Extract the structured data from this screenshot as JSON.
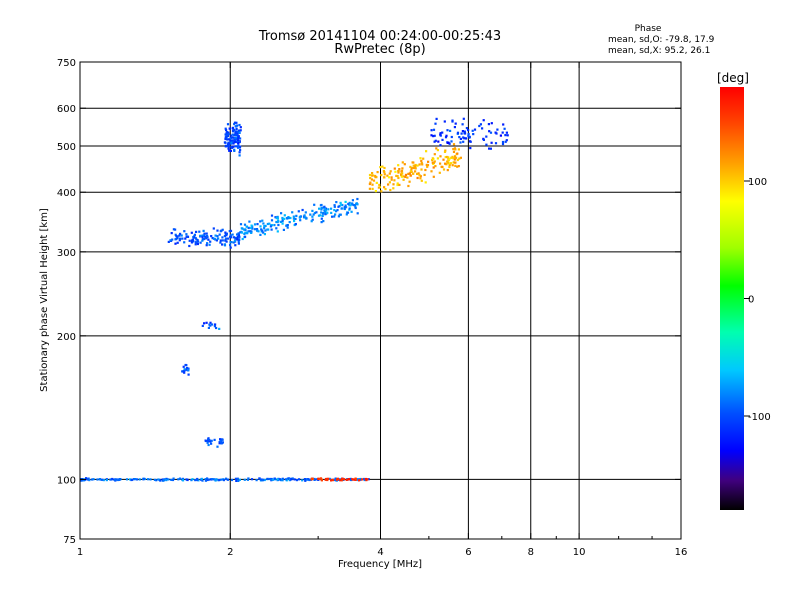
{
  "chart_data": {
    "type": "scatter",
    "title": "Tromsø 20141104 00:24:00-00:25:43",
    "subtitle": "RwPretec (8p)",
    "xlabel": "Frequency [MHz]",
    "ylabel": "Stationary phase Virtual Height [km]",
    "x_scale": "log",
    "y_scale": "log",
    "xlim": [
      1,
      16
    ],
    "ylim": [
      75,
      750
    ],
    "x_ticks": [
      1,
      2,
      4,
      6,
      8,
      10,
      16
    ],
    "x_tick_labels": [
      "1",
      "2",
      "4",
      "6",
      "8",
      "10",
      "16"
    ],
    "y_ticks": [
      75,
      100,
      200,
      300,
      400,
      500,
      600,
      750
    ],
    "y_tick_labels": [
      "75",
      "100",
      "200",
      "300",
      "400",
      "500",
      "600",
      "750"
    ],
    "grid_x": [
      2,
      4,
      6,
      8,
      10
    ],
    "grid_y": [
      100,
      200,
      300,
      400,
      500,
      600
    ],
    "stats": {
      "title": "Phase",
      "line_o": "mean, sd,O: -79.8, 17.9",
      "line_x": "mean, sd,X:  95.2, 26.1"
    },
    "colorbar": {
      "label": "[deg]",
      "range": [
        -180,
        180
      ],
      "tick_values": [
        100,
        0,
        -100
      ],
      "tick_labels": [
        "100",
        "0",
        "-100"
      ]
    },
    "clusters": [
      {
        "name": "E-layer trace",
        "x_range": [
          1.0,
          3.8
        ],
        "y": 100,
        "y_spread": 0.008,
        "n": 220,
        "phase": -95
      },
      {
        "name": "E-layer X trace",
        "x_range": [
          2.9,
          3.8
        ],
        "y": 100,
        "y_spread": 0.008,
        "n": 40,
        "phase": 160
      },
      {
        "name": "Es ladder 120 km",
        "x_range": [
          1.78,
          1.95
        ],
        "y": 120,
        "y_spread": 0.03,
        "n": 25,
        "phase": -100
      },
      {
        "name": "Es ladder 170 km",
        "x_range": [
          1.6,
          1.65
        ],
        "y": 170,
        "y_spread": 0.04,
        "n": 18,
        "phase": -100
      },
      {
        "name": "Es ladder 210 km",
        "x_range": [
          1.75,
          1.9
        ],
        "y": 210,
        "y_spread": 0.03,
        "n": 12,
        "phase": -100
      },
      {
        "name": "F-layer O-mode cusp",
        "x_range": [
          1.5,
          2.1
        ],
        "y": 320,
        "y_spread": 0.06,
        "n": 140,
        "phase": -100
      },
      {
        "name": "F-layer O-mode steep rise",
        "x_range": [
          1.95,
          2.1
        ],
        "y": 520,
        "y_spread": 0.1,
        "n": 120,
        "phase": -105
      },
      {
        "name": "F-layer O-mode trace",
        "x_range": [
          2.1,
          3.6
        ],
        "y": 330,
        "y_spread": 0.06,
        "n": 200,
        "phase": -85
      },
      {
        "name": "F-layer X-mode trace",
        "x_range": [
          3.8,
          5.8
        ],
        "y": 420,
        "y_spread": 0.09,
        "n": 180,
        "phase": 110
      },
      {
        "name": "F-layer high trace",
        "x_range": [
          5.0,
          7.2
        ],
        "y": 530,
        "y_spread": 0.1,
        "n": 90,
        "phase": -110
      }
    ]
  }
}
